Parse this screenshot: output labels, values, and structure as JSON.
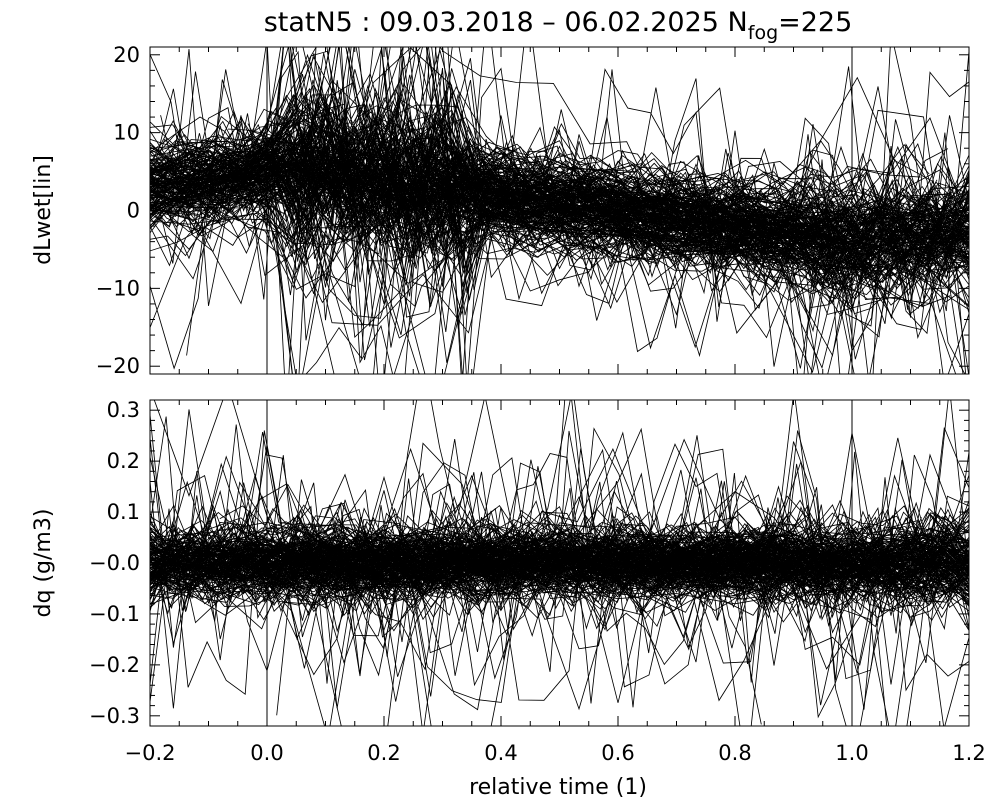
{
  "title": {
    "main": "statN5 : 09.03.2018 – 06.02.2025 N",
    "sub": "fog",
    "suffix": "=225"
  },
  "colors": {
    "line": "#000000",
    "background": "#ffffff"
  },
  "chart_data": [
    {
      "type": "line",
      "panel": "top",
      "ylabel": "dLwet[lin]",
      "xlim": [
        -0.2,
        1.2
      ],
      "ylim": [
        -21,
        21
      ],
      "x_ticks": [
        -0.2,
        0.0,
        0.2,
        0.4,
        0.6,
        0.8,
        1.0,
        1.2
      ],
      "y_ticks": [
        -20,
        -10,
        0,
        10,
        20
      ],
      "y_tick_labels": [
        "−20",
        "−10",
        "0",
        "10",
        "20"
      ],
      "reference_lines_x": [
        0.0,
        1.0
      ],
      "n_series": 225,
      "representative_series": [
        {
          "x": [
            -0.2,
            -0.1,
            0.0,
            0.1,
            0.2,
            0.3,
            0.4,
            0.5,
            0.6,
            0.7,
            0.8,
            0.9,
            1.0,
            1.1,
            1.2
          ],
          "y": [
            3,
            4,
            6,
            6,
            5,
            4,
            3,
            1,
            0,
            -1,
            -2,
            -3,
            -4,
            -3,
            -2
          ]
        },
        {
          "x": [
            -0.2,
            -0.1,
            0.0,
            0.1,
            0.2,
            0.3,
            0.4,
            0.5,
            0.6,
            0.7,
            0.8,
            0.9,
            1.0,
            1.1,
            1.2
          ],
          "y": [
            1,
            2,
            4,
            5,
            4,
            2,
            1,
            0,
            -1,
            -2,
            -3,
            -4,
            -5,
            -4,
            -3
          ]
        },
        {
          "x": [
            -0.2,
            -0.1,
            0.0,
            0.1,
            0.2,
            0.3,
            0.4,
            0.5,
            0.6,
            0.7,
            0.8,
            0.9,
            1.0,
            1.1,
            1.2
          ],
          "y": [
            5,
            6,
            9,
            8,
            7,
            5,
            4,
            2,
            1,
            0,
            -1,
            -2,
            -2,
            -1,
            0
          ]
        }
      ]
    },
    {
      "type": "line",
      "panel": "bottom",
      "xlabel": "relative time (1)",
      "ylabel": "dq (g/m3)",
      "xlim": [
        -0.2,
        1.2
      ],
      "ylim": [
        -0.32,
        0.32
      ],
      "x_ticks": [
        -0.2,
        0.0,
        0.2,
        0.4,
        0.6,
        0.8,
        1.0,
        1.2
      ],
      "x_tick_labels": [
        "−0.2",
        "0.0",
        "0.2",
        "0.4",
        "0.6",
        "0.8",
        "1.0",
        "1.2"
      ],
      "y_ticks": [
        -0.3,
        -0.2,
        -0.1,
        0.0,
        0.1,
        0.2,
        0.3
      ],
      "y_tick_labels": [
        "−0.3",
        "−0.2",
        "−0.1",
        "−0.0",
        "0.1",
        "0.2",
        "0.3"
      ],
      "reference_lines_x": [
        0.0,
        1.0
      ],
      "n_series": 225,
      "representative_series": [
        {
          "x": [
            -0.2,
            -0.1,
            0.0,
            0.1,
            0.2,
            0.3,
            0.4,
            0.5,
            0.6,
            0.7,
            0.8,
            0.9,
            1.0,
            1.1,
            1.2
          ],
          "y": [
            0.0,
            0.02,
            0.03,
            0.01,
            0.0,
            -0.01,
            -0.02,
            -0.01,
            0.0,
            -0.02,
            -0.03,
            -0.01,
            0.02,
            0.0,
            -0.01
          ]
        },
        {
          "x": [
            -0.2,
            -0.1,
            0.0,
            0.1,
            0.2,
            0.3,
            0.4,
            0.5,
            0.6,
            0.7,
            0.8,
            0.9,
            1.0,
            1.1,
            1.2
          ],
          "y": [
            -0.03,
            -0.05,
            -0.02,
            -0.04,
            -0.03,
            -0.05,
            -0.06,
            -0.05,
            -0.07,
            -0.06,
            -0.08,
            -0.06,
            -0.05,
            -0.07,
            -0.04
          ]
        },
        {
          "x": [
            -0.2,
            -0.1,
            0.0,
            0.1,
            0.2,
            0.3,
            0.4,
            0.5,
            0.6,
            0.7,
            0.8,
            0.9,
            1.0,
            1.1,
            1.2
          ],
          "y": [
            0.05,
            0.06,
            0.08,
            0.05,
            0.04,
            0.03,
            0.02,
            0.03,
            0.02,
            0.01,
            0.03,
            0.04,
            0.06,
            0.05,
            0.04
          ]
        }
      ]
    }
  ]
}
